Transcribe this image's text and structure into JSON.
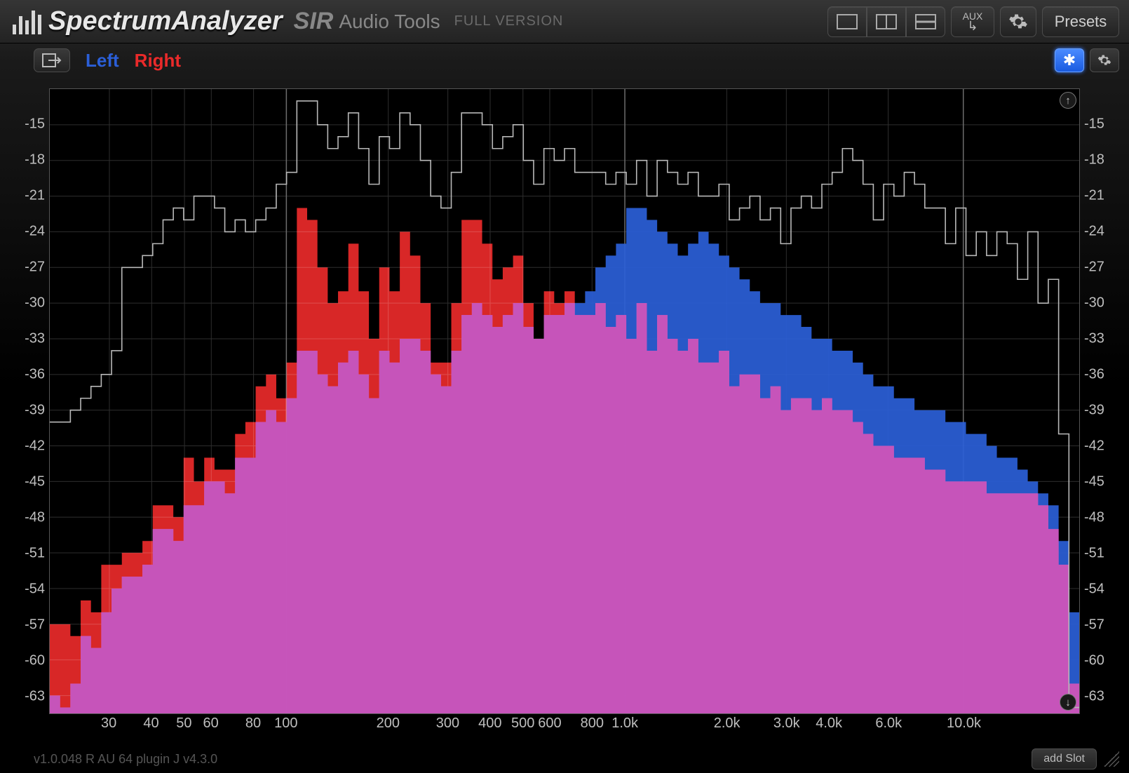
{
  "header": {
    "product_name": "SpectrumAnalyzer",
    "brand_prefix": "SIR",
    "brand_suffix": "Audio Tools",
    "license_label": "FULL VERSION",
    "logo_bar_heights": [
      14,
      26,
      20,
      34,
      28
    ],
    "aux_label": "AUX",
    "presets_label": "Presets"
  },
  "channels": {
    "left": {
      "label": "Left",
      "color": "#2b5fd8"
    },
    "right": {
      "label": "Right",
      "color": "#ea2a2a"
    }
  },
  "freeze_glyph": "✱",
  "chart": {
    "type": "spectrum",
    "background_color": "#000000",
    "grid_color_minor": "#2e2e2e",
    "grid_color_major": "#6c6c6c",
    "axis_font_size": 20,
    "axis_color": "#bfbfbf",
    "y_range": [
      -64.5,
      -12
    ],
    "y_ticks": [
      -15,
      -18,
      -21,
      -24,
      -27,
      -30,
      -33,
      -36,
      -39,
      -42,
      -45,
      -48,
      -51,
      -54,
      -57,
      -60,
      -63
    ],
    "x_range_hz": [
      20,
      22000
    ],
    "x_ticks": [
      {
        "hz": 30,
        "label": "30"
      },
      {
        "hz": 40,
        "label": "40"
      },
      {
        "hz": 50,
        "label": "50"
      },
      {
        "hz": 60,
        "label": "60"
      },
      {
        "hz": 80,
        "label": "80"
      },
      {
        "hz": 100,
        "label": "100"
      },
      {
        "hz": 200,
        "label": "200"
      },
      {
        "hz": 300,
        "label": "300"
      },
      {
        "hz": 400,
        "label": "400"
      },
      {
        "hz": 500,
        "label": "500"
      },
      {
        "hz": 600,
        "label": "600"
      },
      {
        "hz": 800,
        "label": "800"
      },
      {
        "hz": 1000,
        "label": "1.0k"
      },
      {
        "hz": 2000,
        "label": "2.0k"
      },
      {
        "hz": 3000,
        "label": "3.0k"
      },
      {
        "hz": 4000,
        "label": "4.0k"
      },
      {
        "hz": 6000,
        "label": "6.0k"
      },
      {
        "hz": 10000,
        "label": "10.0k"
      }
    ],
    "x_major_hz": [
      100,
      1000,
      10000
    ],
    "peak_line_color": "#b8b8b8",
    "peak_line_width": 1.6,
    "series": {
      "left": {
        "fill": "#2b5fd8",
        "opacity": 0.92
      },
      "right": {
        "fill": "#ea2a2a",
        "opacity": 0.92
      },
      "overlap_tint": "#c24fb6"
    },
    "peak_db": [
      -40,
      -40,
      -39,
      -38,
      -37,
      -36,
      -34,
      -27,
      -27,
      -26,
      -25,
      -23,
      -22,
      -23,
      -21,
      -21,
      -22,
      -24,
      -23,
      -24,
      -23,
      -22,
      -20,
      -19,
      -13,
      -13,
      -15,
      -17,
      -16,
      -14,
      -17,
      -20,
      -16,
      -17,
      -14,
      -15,
      -18,
      -21,
      -22,
      -19,
      -14,
      -14,
      -15,
      -17,
      -16,
      -15,
      -18,
      -20,
      -17,
      -18,
      -17,
      -19,
      -19,
      -19,
      -20,
      -19,
      -20,
      -18,
      -21,
      -18,
      -19,
      -20,
      -19,
      -21,
      -21,
      -20,
      -23,
      -22,
      -21,
      -23,
      -22,
      -25,
      -22,
      -21,
      -22,
      -20,
      -19,
      -17,
      -18,
      -20,
      -23,
      -20,
      -21,
      -19,
      -20,
      -22,
      -22,
      -25,
      -22,
      -26,
      -24,
      -26,
      -24,
      -25,
      -28,
      -24,
      -30,
      -28,
      -41,
      -64
    ],
    "left_db": [
      -63,
      -64,
      -62,
      -58,
      -59,
      -56,
      -54,
      -53,
      -53,
      -52,
      -49,
      -49,
      -50,
      -47,
      -47,
      -45,
      -45,
      -46,
      -43,
      -43,
      -40,
      -39,
      -40,
      -38,
      -34,
      -34,
      -36,
      -37,
      -35,
      -34,
      -36,
      -38,
      -34,
      -35,
      -33,
      -33,
      -34,
      -36,
      -37,
      -34,
      -31,
      -30,
      -31,
      -32,
      -31,
      -30,
      -32,
      -33,
      -31,
      -31,
      -30,
      -30,
      -29,
      -27,
      -26,
      -25,
      -22,
      -22,
      -23,
      -24,
      -25,
      -26,
      -25,
      -24,
      -25,
      -26,
      -27,
      -28,
      -29,
      -30,
      -30,
      -31,
      -31,
      -32,
      -33,
      -33,
      -34,
      -34,
      -35,
      -36,
      -37,
      -37,
      -38,
      -38,
      -39,
      -39,
      -39,
      -40,
      -40,
      -41,
      -41,
      -42,
      -43,
      -43,
      -44,
      -45,
      -46,
      -47,
      -50,
      -56
    ],
    "right_db": [
      -57,
      -57,
      -58,
      -55,
      -56,
      -52,
      -52,
      -51,
      -51,
      -50,
      -47,
      -47,
      -48,
      -43,
      -45,
      -43,
      -44,
      -44,
      -41,
      -40,
      -37,
      -36,
      -38,
      -35,
      -22,
      -23,
      -27,
      -30,
      -29,
      -25,
      -29,
      -33,
      -27,
      -29,
      -24,
      -26,
      -30,
      -35,
      -35,
      -30,
      -23,
      -23,
      -25,
      -28,
      -27,
      -26,
      -30,
      -33,
      -29,
      -30,
      -29,
      -31,
      -31,
      -30,
      -32,
      -31,
      -33,
      -30,
      -34,
      -31,
      -33,
      -34,
      -33,
      -35,
      -35,
      -34,
      -37,
      -36,
      -36,
      -38,
      -37,
      -39,
      -38,
      -38,
      -39,
      -38,
      -39,
      -39,
      -40,
      -41,
      -42,
      -42,
      -43,
      -43,
      -43,
      -44,
      -44,
      -45,
      -45,
      -45,
      -45,
      -46,
      -46,
      -46,
      -46,
      -46,
      -47,
      -49,
      -52,
      -62
    ]
  },
  "footer": {
    "version_line": "v1.0.048 R AU 64  plugin J v4.3.0",
    "add_slot_label": "add Slot"
  }
}
